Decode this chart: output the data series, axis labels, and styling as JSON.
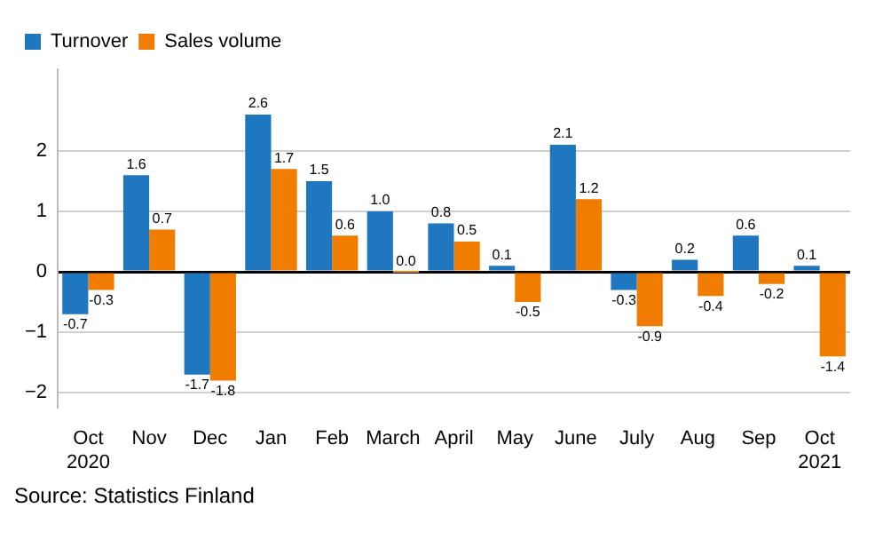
{
  "chart_data": {
    "type": "bar",
    "categories": [
      "Oct\n2020",
      "Nov",
      "Dec",
      "Jan",
      "Feb",
      "March",
      "April",
      "May",
      "June",
      "July",
      "Aug",
      "Sep",
      "Oct\n2021"
    ],
    "series": [
      {
        "name": "Turnover",
        "color": "#1f77c0",
        "values": [
          -0.7,
          1.6,
          -1.7,
          2.6,
          1.5,
          1.0,
          0.8,
          0.1,
          2.1,
          -0.3,
          0.2,
          0.6,
          0.1
        ],
        "value_labels": [
          "-0.7",
          "1.6",
          "-1.7",
          "2.6",
          "1.5",
          "1.0",
          "0.8",
          "0.1",
          "2.1",
          "-0.3",
          "0.2",
          "0.6",
          "0.1"
        ]
      },
      {
        "name": "Sales volume",
        "color": "#f07d00",
        "values": [
          -0.3,
          0.7,
          -1.8,
          1.7,
          0.6,
          0.0,
          0.5,
          -0.5,
          1.2,
          -0.9,
          -0.4,
          -0.2,
          -1.4
        ],
        "value_labels": [
          "-0.3",
          "0.7",
          "-1.8",
          "1.7",
          "0.6",
          "0.0",
          "0.5",
          "-0.5",
          "1.2",
          "-0.9",
          "-0.4",
          "-0.2",
          "-1.4"
        ]
      }
    ],
    "ylim": [
      -2.25,
      3.35
    ],
    "yticks": [
      -2,
      -1,
      0,
      1,
      2
    ],
    "grid": "y",
    "legend": "top left",
    "annotations": [
      "Source: Statistics Finland"
    ]
  }
}
